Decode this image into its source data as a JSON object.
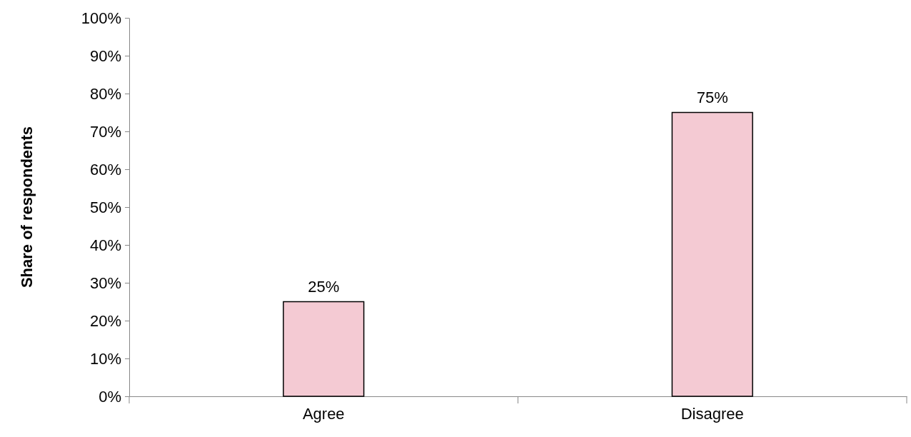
{
  "chart_data": {
    "type": "bar",
    "ylabel": "Share of respondents",
    "categories": [
      "Agree",
      "Disagree"
    ],
    "series": [
      {
        "color": "#f4cad3",
        "values": [
          25,
          75
        ],
        "value_labels": [
          "25%",
          "75%"
        ]
      }
    ],
    "ylim": [
      0,
      100
    ],
    "yticks": [
      {
        "value": 0,
        "label": "0%"
      },
      {
        "value": 10,
        "label": "10%"
      },
      {
        "value": 20,
        "label": "20%"
      },
      {
        "value": 30,
        "label": "30%"
      },
      {
        "value": 40,
        "label": "40%"
      },
      {
        "value": 50,
        "label": "50%"
      },
      {
        "value": 60,
        "label": "60%"
      },
      {
        "value": 70,
        "label": "70%"
      },
      {
        "value": 80,
        "label": "80%"
      },
      {
        "value": 90,
        "label": "90%"
      },
      {
        "value": 100,
        "label": "100%"
      }
    ],
    "grid": false
  }
}
